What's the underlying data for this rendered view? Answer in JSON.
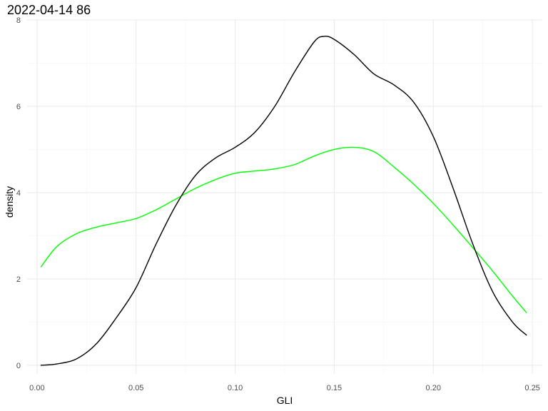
{
  "chart_data": {
    "type": "line",
    "title": "2022-04-14 86",
    "xlabel": "GLI",
    "ylabel": "density",
    "xlim": [
      -0.005,
      0.255
    ],
    "ylim": [
      -0.2,
      8.0
    ],
    "x_ticks": [
      0.0,
      0.05,
      0.1,
      0.15,
      0.2,
      0.25
    ],
    "x_tick_labels": [
      "0.00",
      "0.05",
      "0.10",
      "0.15",
      "0.20",
      "0.25"
    ],
    "y_ticks": [
      0,
      2,
      4,
      6,
      8
    ],
    "y_tick_labels": [
      "0",
      "2",
      "4",
      "6",
      "8"
    ],
    "grid": true,
    "legend": "none",
    "series": [
      {
        "color": "#000000",
        "points": [
          [
            0.002,
            0.0
          ],
          [
            0.01,
            0.03
          ],
          [
            0.02,
            0.15
          ],
          [
            0.03,
            0.5
          ],
          [
            0.04,
            1.1
          ],
          [
            0.05,
            1.8
          ],
          [
            0.06,
            2.8
          ],
          [
            0.07,
            3.7
          ],
          [
            0.08,
            4.4
          ],
          [
            0.09,
            4.8
          ],
          [
            0.1,
            5.05
          ],
          [
            0.11,
            5.4
          ],
          [
            0.12,
            6.0
          ],
          [
            0.13,
            6.8
          ],
          [
            0.14,
            7.5
          ],
          [
            0.145,
            7.62
          ],
          [
            0.15,
            7.55
          ],
          [
            0.16,
            7.2
          ],
          [
            0.17,
            6.75
          ],
          [
            0.18,
            6.5
          ],
          [
            0.19,
            6.1
          ],
          [
            0.2,
            5.3
          ],
          [
            0.21,
            4.1
          ],
          [
            0.22,
            2.8
          ],
          [
            0.23,
            1.7
          ],
          [
            0.24,
            1.0
          ],
          [
            0.247,
            0.7
          ]
        ]
      },
      {
        "color": "#00ff00",
        "points": [
          [
            0.002,
            2.28
          ],
          [
            0.01,
            2.75
          ],
          [
            0.02,
            3.05
          ],
          [
            0.03,
            3.2
          ],
          [
            0.04,
            3.3
          ],
          [
            0.05,
            3.4
          ],
          [
            0.06,
            3.6
          ],
          [
            0.07,
            3.85
          ],
          [
            0.08,
            4.1
          ],
          [
            0.09,
            4.3
          ],
          [
            0.1,
            4.45
          ],
          [
            0.11,
            4.5
          ],
          [
            0.12,
            4.55
          ],
          [
            0.13,
            4.65
          ],
          [
            0.14,
            4.85
          ],
          [
            0.15,
            5.0
          ],
          [
            0.16,
            5.05
          ],
          [
            0.17,
            4.95
          ],
          [
            0.18,
            4.6
          ],
          [
            0.19,
            4.2
          ],
          [
            0.2,
            3.75
          ],
          [
            0.21,
            3.25
          ],
          [
            0.22,
            2.72
          ],
          [
            0.23,
            2.18
          ],
          [
            0.24,
            1.6
          ],
          [
            0.247,
            1.22
          ]
        ]
      }
    ]
  }
}
